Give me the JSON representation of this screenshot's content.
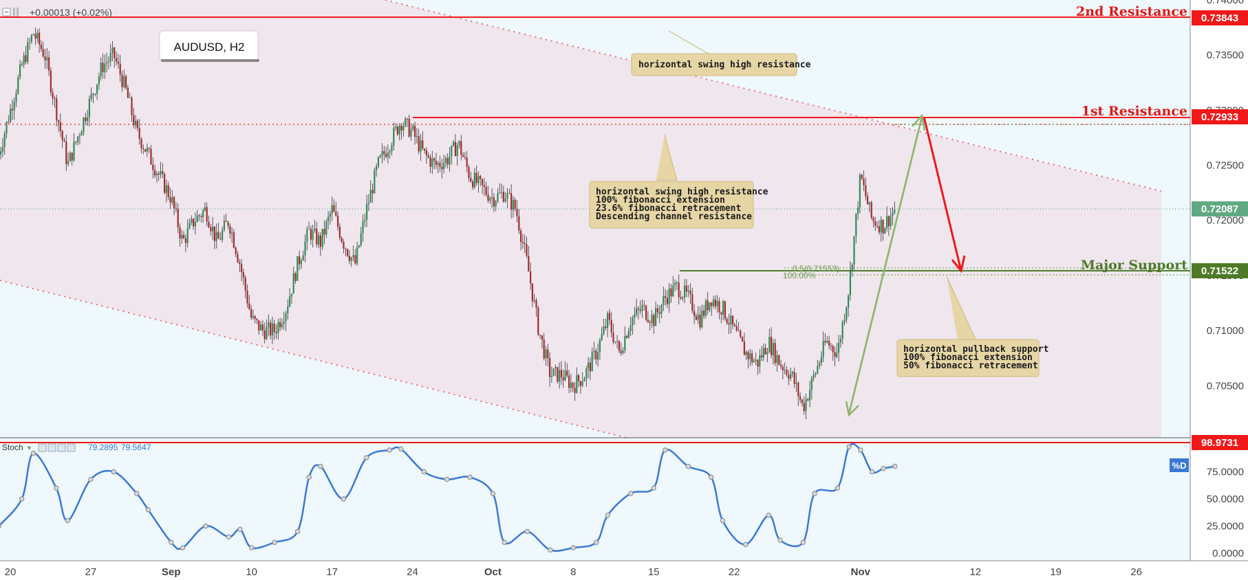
{
  "header": {
    "change": "+0.00013 (+0.02%)",
    "symbol": "AUDUSD, H2"
  },
  "indicator": {
    "name": "Stoch",
    "k_value": "79.2895",
    "d_value": "79.5647",
    "d_badge": "%D"
  },
  "levels": {
    "second_resistance": {
      "label": "2nd Resistance",
      "value": "0.73843",
      "price": 0.73843
    },
    "first_resistance": {
      "label": "1st Resistance",
      "value": "0.72933",
      "price": 0.72933
    },
    "current": {
      "value": "0.72087",
      "price": 0.72087
    },
    "major_support": {
      "label": "Major Support",
      "value": "0.71522",
      "price": 0.71522
    },
    "stoch_max": {
      "value": "98.9731",
      "price": 98.9731
    }
  },
  "fib": {
    "ret_label": "0.5(0.71553)",
    "ext_label": "100.00%"
  },
  "annotations": {
    "box1": [
      "horizontal swing high resistance"
    ],
    "box2": [
      "horizontal swing high resistance",
      "100% fibonacci extension",
      "23.6% fibonacci retracement",
      "Descending channel resistance"
    ],
    "box3": [
      "horizontal pullback support",
      "100% fibonacci extension",
      "50% fibonacci retracement"
    ]
  },
  "colors": {
    "background": "#eef8fd",
    "channel": "#efe6ee",
    "resistance": "#f01818",
    "support": "#4e7a28",
    "up_candle": "#2e8b57",
    "down_candle": "#a52a2a",
    "stoch_line": "#3a78d4",
    "fib_green": "#8db56b",
    "note_box": "#e6d6a6"
  },
  "chart_data": {
    "type": "candlestick",
    "price_axis": {
      "ticks": [
        "0.74000",
        "0.73500",
        "0.73000",
        "0.72500",
        "0.72000",
        "0.71500",
        "0.71000",
        "0.70500"
      ]
    },
    "stoch_axis": {
      "ticks": [
        "75.0000",
        "50.0000",
        "25.0000",
        "0.0000"
      ]
    },
    "time_axis": {
      "ticks": [
        "20",
        "27",
        "Sep",
        "10",
        "17",
        "24",
        "Oct",
        "8",
        "15",
        "22",
        "Nov",
        "12",
        "19",
        "26"
      ]
    },
    "price_path": [
      [
        "Aug 19",
        0.726
      ],
      [
        "Aug 20",
        0.73
      ],
      [
        "Aug 21",
        0.734
      ],
      [
        "Aug 22",
        0.737
      ],
      [
        "Aug 23",
        0.735
      ],
      [
        "Aug 24",
        0.73
      ],
      [
        "Aug 25",
        0.725
      ],
      [
        "Aug 27",
        0.731
      ],
      [
        "Aug 28",
        0.734
      ],
      [
        "Aug 29",
        0.735
      ],
      [
        "Aug 30",
        0.732
      ],
      [
        "Aug 31",
        0.728
      ],
      [
        "Sep 1",
        0.726
      ],
      [
        "Sep 3",
        0.722
      ],
      [
        "Sep 4",
        0.718
      ],
      [
        "Sep 5",
        0.72
      ],
      [
        "Sep 6",
        0.721
      ],
      [
        "Sep 7",
        0.718
      ],
      [
        "Sep 8",
        0.72
      ],
      [
        "Sep 9",
        0.716
      ],
      [
        "Sep 10",
        0.711
      ],
      [
        "Sep 11",
        0.71
      ],
      [
        "Sep 12",
        0.71
      ],
      [
        "Sep 13",
        0.712
      ],
      [
        "Sep 14",
        0.716
      ],
      [
        "Sep 15",
        0.719
      ],
      [
        "Sep 16",
        0.718
      ],
      [
        "Sep 17",
        0.721
      ],
      [
        "Sep 18",
        0.718
      ],
      [
        "Sep 19",
        0.716
      ],
      [
        "Sep 20",
        0.721
      ],
      [
        "Sep 21",
        0.725
      ],
      [
        "Sep 22",
        0.727
      ],
      [
        "Sep 23",
        0.729
      ],
      [
        "Sep 24",
        0.728
      ],
      [
        "Sep 25",
        0.726
      ],
      [
        "Sep 26",
        0.725
      ],
      [
        "Sep 27",
        0.7255
      ],
      [
        "Sep 28",
        0.727
      ],
      [
        "Sep 29",
        0.724
      ],
      [
        "Oct 1",
        0.722
      ],
      [
        "Oct 2",
        0.7225
      ],
      [
        "Oct 3",
        0.721
      ],
      [
        "Oct 4",
        0.716
      ],
      [
        "Oct 5",
        0.71
      ],
      [
        "Oct 6",
        0.706
      ],
      [
        "Oct 7",
        0.706
      ],
      [
        "Oct 8",
        0.705
      ],
      [
        "Oct 9",
        0.706
      ],
      [
        "Oct 10",
        0.708
      ],
      [
        "Oct 11",
        0.711
      ],
      [
        "Oct 12",
        0.708
      ],
      [
        "Oct 13",
        0.711
      ],
      [
        "Oct 14",
        0.712
      ],
      [
        "Oct 15",
        0.711
      ],
      [
        "Oct 16",
        0.713
      ],
      [
        "Oct 17",
        0.714
      ],
      [
        "Oct 18",
        0.713
      ],
      [
        "Oct 19",
        0.711
      ],
      [
        "Oct 20",
        0.713
      ],
      [
        "Oct 21",
        0.712
      ],
      [
        "Oct 22",
        0.71
      ],
      [
        "Oct 23",
        0.708
      ],
      [
        "Oct 24",
        0.707
      ],
      [
        "Oct 25",
        0.709
      ],
      [
        "Oct 26",
        0.707
      ],
      [
        "Oct 27",
        0.706
      ],
      [
        "Oct 28",
        0.703
      ],
      [
        "Oct 29",
        0.706
      ],
      [
        "Oct 30",
        0.709
      ],
      [
        "Oct 31",
        0.708
      ],
      [
        "Nov 1",
        0.714
      ],
      [
        "Nov 2",
        0.724
      ],
      [
        "Nov 3",
        0.72
      ],
      [
        "Nov 4",
        0.7195
      ],
      [
        "Nov 5",
        0.721
      ]
    ],
    "stoch_path": [
      [
        "Aug 19",
        25
      ],
      [
        "Aug 21",
        50
      ],
      [
        "Aug 22",
        92
      ],
      [
        "Aug 24",
        60
      ],
      [
        "Aug 25",
        30
      ],
      [
        "Aug 27",
        68
      ],
      [
        "Aug 29",
        75
      ],
      [
        "Aug 31",
        55
      ],
      [
        "Sep 1",
        40
      ],
      [
        "Sep 3",
        10
      ],
      [
        "Sep 4",
        5
      ],
      [
        "Sep 6",
        25
      ],
      [
        "Sep 8",
        15
      ],
      [
        "Sep 9",
        22
      ],
      [
        "Sep 10",
        5
      ],
      [
        "Sep 12",
        10
      ],
      [
        "Sep 14",
        20
      ],
      [
        "Sep 15",
        70
      ],
      [
        "Sep 16",
        80
      ],
      [
        "Sep 18",
        50
      ],
      [
        "Sep 20",
        88
      ],
      [
        "Sep 22",
        95
      ],
      [
        "Sep 23",
        96
      ],
      [
        "Sep 25",
        75
      ],
      [
        "Sep 27",
        68
      ],
      [
        "Sep 29",
        70
      ],
      [
        "Oct 1",
        55
      ],
      [
        "Oct 2",
        10
      ],
      [
        "Oct 4",
        20
      ],
      [
        "Oct 6",
        3
      ],
      [
        "Oct 8",
        5
      ],
      [
        "Oct 10",
        10
      ],
      [
        "Oct 11",
        35
      ],
      [
        "Oct 13",
        55
      ],
      [
        "Oct 15",
        60
      ],
      [
        "Oct 16",
        95
      ],
      [
        "Oct 18",
        80
      ],
      [
        "Oct 20",
        70
      ],
      [
        "Oct 21",
        30
      ],
      [
        "Oct 23",
        8
      ],
      [
        "Oct 25",
        35
      ],
      [
        "Oct 26",
        12
      ],
      [
        "Oct 28",
        10
      ],
      [
        "Oct 29",
        55
      ],
      [
        "Oct 31",
        60
      ],
      [
        "Nov 1",
        98
      ],
      [
        "Nov 2",
        95
      ],
      [
        "Nov 3",
        75
      ],
      [
        "Nov 4",
        78
      ],
      [
        "Nov 5",
        80
      ]
    ]
  }
}
